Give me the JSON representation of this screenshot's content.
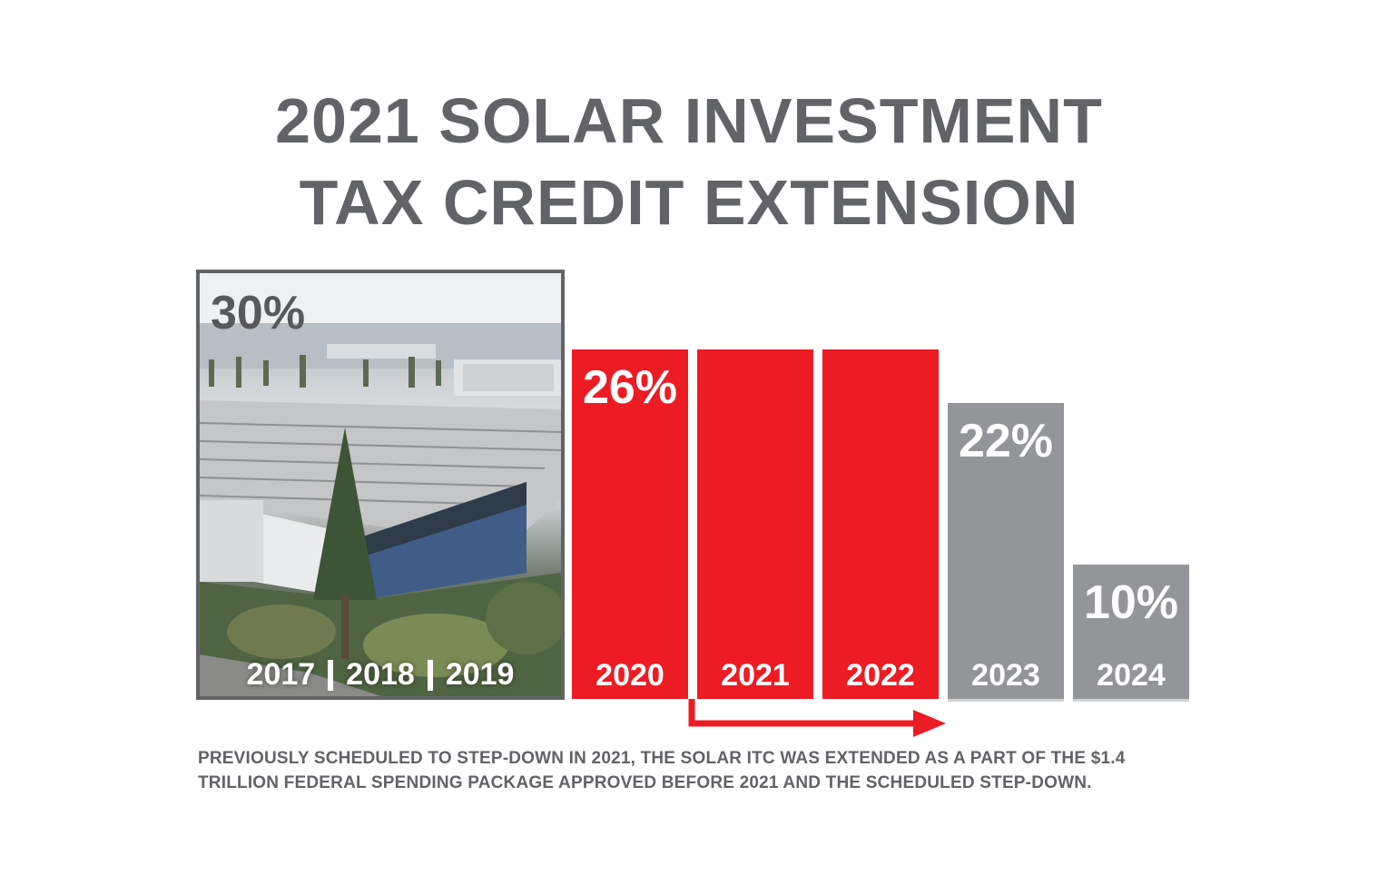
{
  "title": {
    "line1": "2021 SOLAR INVESTMENT",
    "line2": "TAX CREDIT EXTENSION"
  },
  "colors": {
    "title": "#626366",
    "extended": "#ed1c24",
    "future": "#939598",
    "text_on_bar": "#ffffff"
  },
  "photo_panel": {
    "percent": "30%",
    "years": [
      "2017",
      "2018",
      "2019"
    ]
  },
  "chart_data": {
    "type": "bar",
    "categories": [
      "2017-2019",
      "2020",
      "2021",
      "2022",
      "2023",
      "2024"
    ],
    "values": [
      30,
      26,
      26,
      26,
      22,
      10
    ],
    "value_labels": [
      "30%",
      "26%",
      "",
      "",
      "22%",
      "10%"
    ],
    "year_labels": [
      "2017 | 2018 | 2019",
      "2020",
      "2021",
      "2022",
      "2023",
      "2024"
    ],
    "bar_colors": [
      "photo",
      "#ed1c24",
      "#ed1c24",
      "#ed1c24",
      "#939598",
      "#939598"
    ],
    "ylim": [
      0,
      30
    ],
    "grid": false,
    "title": "2021 SOLAR INVESTMENT TAX CREDIT EXTENSION"
  },
  "bars": [
    {
      "year": "2020",
      "percent": "26%",
      "value": 26,
      "color": "#ed1c24"
    },
    {
      "year": "2021",
      "percent": "",
      "value": 26,
      "color": "#ed1c24"
    },
    {
      "year": "2022",
      "percent": "",
      "value": 26,
      "color": "#ed1c24"
    },
    {
      "year": "2023",
      "percent": "22%",
      "value": 22,
      "color": "#939598"
    },
    {
      "year": "2024",
      "percent": "10%",
      "value": 10,
      "color": "#939598"
    }
  ],
  "note": {
    "line1": "PREVIOUSLY SCHEDULED TO STEP-DOWN IN 2021, THE SOLAR ITC WAS EXTENDED AS A PART OF THE $1.4",
    "line2": "TRILLION FEDERAL SPENDING PACKAGE APPROVED BEFORE 2021 AND THE SCHEDULED STEP-DOWN."
  }
}
